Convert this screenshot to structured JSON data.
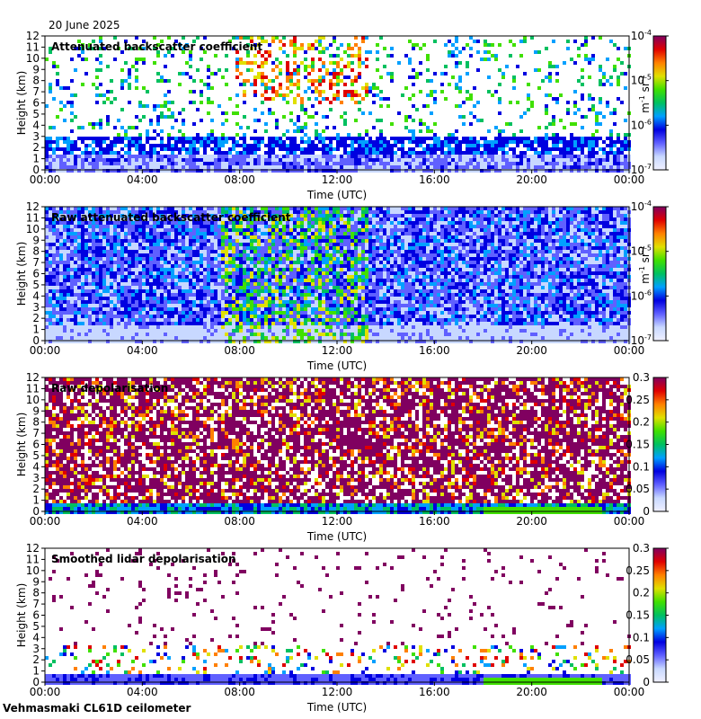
{
  "date": "20 June 2025",
  "footer": "Vehmasmaki CL61D ceilometer",
  "colors": {
    "background": "#ffffff",
    "axis": "#000000",
    "colormap": [
      "#f0f0ff",
      "#c8d8ff",
      "#6060ff",
      "#0000e0",
      "#00a0ff",
      "#00c060",
      "#40e000",
      "#e0e000",
      "#ff8000",
      "#e00000",
      "#800060"
    ]
  },
  "chart_data": [
    {
      "type": "heatmap",
      "title": "Attenuated backscatter coefficient",
      "xlabel": "Time (UTC)",
      "ylabel": "Height (km)",
      "x_ticks": [
        "00:00",
        "04:00",
        "08:00",
        "12:00",
        "16:00",
        "20:00",
        "00:00"
      ],
      "y_ticks": [
        "0",
        "1",
        "2",
        "3",
        "4",
        "5",
        "6",
        "7",
        "8",
        "9",
        "10",
        "11",
        "12"
      ],
      "ylim": [
        0,
        12
      ],
      "colorbar": {
        "scale": "log",
        "ticks": [
          "10",
          "10",
          "10",
          "10"
        ],
        "tick_exponents": [
          "-7",
          "-6",
          "-5",
          "-4"
        ],
        "label_unit_a": "m",
        "label_exp_a": "-1",
        "label_unit_b": " sr",
        "label_exp_b": "-1"
      }
    },
    {
      "type": "heatmap",
      "title": "Raw attenuated backscatter coefficient",
      "xlabel": "Time (UTC)",
      "ylabel": "Height (km)",
      "x_ticks": [
        "00:00",
        "04:00",
        "08:00",
        "12:00",
        "16:00",
        "20:00",
        "00:00"
      ],
      "y_ticks": [
        "0",
        "1",
        "2",
        "3",
        "4",
        "5",
        "6",
        "7",
        "8",
        "9",
        "10",
        "11",
        "12"
      ],
      "ylim": [
        0,
        12
      ],
      "colorbar": {
        "scale": "log",
        "ticks": [
          "10",
          "10",
          "10",
          "10"
        ],
        "tick_exponents": [
          "-7",
          "-6",
          "-5",
          "-4"
        ],
        "label_unit_a": "m",
        "label_exp_a": "-1",
        "label_unit_b": " sr",
        "label_exp_b": "-1"
      }
    },
    {
      "type": "heatmap",
      "title": "Raw depolarisation",
      "xlabel": "Time (UTC)",
      "ylabel": "Height (km)",
      "x_ticks": [
        "00:00",
        "04:00",
        "08:00",
        "12:00",
        "16:00",
        "20:00",
        "00:00"
      ],
      "y_ticks": [
        "0",
        "1",
        "2",
        "3",
        "4",
        "5",
        "6",
        "7",
        "8",
        "9",
        "10",
        "11",
        "12"
      ],
      "ylim": [
        0,
        12
      ],
      "colorbar": {
        "scale": "linear",
        "ticks": [
          "0",
          "0.05",
          "0.1",
          "0.15",
          "0.2",
          "0.25",
          "0.3"
        ]
      }
    },
    {
      "type": "heatmap",
      "title": "Smoothed lidar depolarisation",
      "xlabel": "Time (UTC)",
      "ylabel": "Height (km)",
      "x_ticks": [
        "00:00",
        "04:00",
        "08:00",
        "12:00",
        "16:00",
        "20:00",
        "00:00"
      ],
      "y_ticks": [
        "0",
        "1",
        "2",
        "3",
        "4",
        "5",
        "6",
        "7",
        "8",
        "9",
        "10",
        "11",
        "12"
      ],
      "ylim": [
        0,
        12
      ],
      "colorbar": {
        "scale": "linear",
        "ticks": [
          "0",
          "0.05",
          "0.1",
          "0.15",
          "0.2",
          "0.25",
          "0.3"
        ]
      }
    }
  ]
}
